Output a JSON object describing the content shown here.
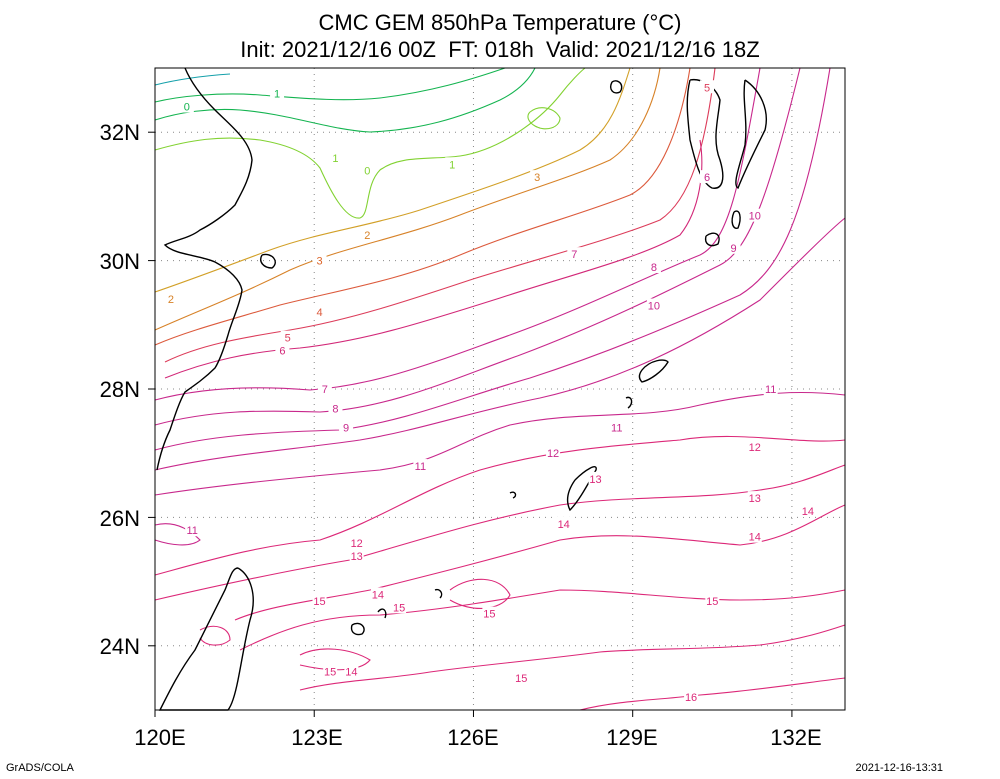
{
  "title": {
    "line1": "CMC GEM 850hPa Temperature (°C)",
    "line2": "Init: 2021/12/16 00Z  FT: 018h  Valid: 2021/12/16 18Z"
  },
  "axes": {
    "x_ticks": [
      "120E",
      "123E",
      "126E",
      "129E",
      "132E"
    ],
    "y_ticks": [
      "32N",
      "30N",
      "28N",
      "26N",
      "24N"
    ],
    "lon_range": [
      120,
      133
    ],
    "lat_range": [
      23,
      33
    ],
    "grid": "dotted"
  },
  "contour_labels": [
    {
      "text": "1",
      "lon": 122.3,
      "lat": 32.6,
      "color": "#14b450"
    },
    {
      "text": "0",
      "lon": 120.6,
      "lat": 32.4,
      "color": "#14b450"
    },
    {
      "text": "1",
      "lon": 123.4,
      "lat": 31.6,
      "color": "#82d232"
    },
    {
      "text": "0",
      "lon": 124.0,
      "lat": 31.4,
      "color": "#82d232"
    },
    {
      "text": "1",
      "lon": 125.6,
      "lat": 31.5,
      "color": "#82d232"
    },
    {
      "text": "3",
      "lon": 127.2,
      "lat": 31.3,
      "color": "#d78228"
    },
    {
      "text": "2",
      "lon": 124.0,
      "lat": 30.4,
      "color": "#d78228"
    },
    {
      "text": "3",
      "lon": 123.1,
      "lat": 30.0,
      "color": "#dc6428"
    },
    {
      "text": "2",
      "lon": 120.3,
      "lat": 29.4,
      "color": "#d78228"
    },
    {
      "text": "4",
      "lon": 123.1,
      "lat": 29.2,
      "color": "#dc5a3c"
    },
    {
      "text": "5",
      "lon": 122.5,
      "lat": 28.8,
      "color": "#dc3c5a"
    },
    {
      "text": "6",
      "lon": 122.4,
      "lat": 28.6,
      "color": "#d22878"
    },
    {
      "text": "7",
      "lon": 123.2,
      "lat": 28.0,
      "color": "#c8288c"
    },
    {
      "text": "8",
      "lon": 123.4,
      "lat": 27.7,
      "color": "#c8288c"
    },
    {
      "text": "9",
      "lon": 123.6,
      "lat": 27.4,
      "color": "#c8288c"
    },
    {
      "text": "11",
      "lon": 125.0,
      "lat": 26.8,
      "color": "#c8288c"
    },
    {
      "text": "12",
      "lon": 127.5,
      "lat": 27.0,
      "color": "#c8288c"
    },
    {
      "text": "11",
      "lon": 128.7,
      "lat": 27.4,
      "color": "#c8288c"
    },
    {
      "text": "13",
      "lon": 128.3,
      "lat": 26.6,
      "color": "#dc2878"
    },
    {
      "text": "12",
      "lon": 131.3,
      "lat": 27.1,
      "color": "#dc2878"
    },
    {
      "text": "11",
      "lon": 131.6,
      "lat": 28.0,
      "color": "#c8288c"
    },
    {
      "text": "13",
      "lon": 131.3,
      "lat": 26.3,
      "color": "#dc2878"
    },
    {
      "text": "11",
      "lon": 120.7,
      "lat": 25.8,
      "color": "#c8288c"
    },
    {
      "text": "12",
      "lon": 123.8,
      "lat": 25.6,
      "color": "#dc2878"
    },
    {
      "text": "13",
      "lon": 123.8,
      "lat": 25.4,
      "color": "#dc2878"
    },
    {
      "text": "14",
      "lon": 127.7,
      "lat": 25.9,
      "color": "#dc2878"
    },
    {
      "text": "14",
      "lon": 131.3,
      "lat": 25.7,
      "color": "#dc2878"
    },
    {
      "text": "14",
      "lon": 132.3,
      "lat": 26.1,
      "color": "#dc2878"
    },
    {
      "text": "14",
      "lon": 124.2,
      "lat": 24.8,
      "color": "#dc2878"
    },
    {
      "text": "15",
      "lon": 123.1,
      "lat": 24.7,
      "color": "#dc2878"
    },
    {
      "text": "15",
      "lon": 124.6,
      "lat": 24.6,
      "color": "#dc2878"
    },
    {
      "text": "15",
      "lon": 126.3,
      "lat": 24.5,
      "color": "#dc2878"
    },
    {
      "text": "15",
      "lon": 130.5,
      "lat": 24.7,
      "color": "#dc2878"
    },
    {
      "text": "15",
      "lon": 123.3,
      "lat": 23.6,
      "color": "#dc2878"
    },
    {
      "text": "14",
      "lon": 123.7,
      "lat": 23.6,
      "color": "#dc2878"
    },
    {
      "text": "15",
      "lon": 126.9,
      "lat": 23.5,
      "color": "#dc2878"
    },
    {
      "text": "16",
      "lon": 130.1,
      "lat": 23.2,
      "color": "#dc2878"
    },
    {
      "text": "8",
      "lon": 129.4,
      "lat": 29.9,
      "color": "#c8288c"
    },
    {
      "text": "7",
      "lon": 127.9,
      "lat": 30.1,
      "color": "#c8288c"
    },
    {
      "text": "10",
      "lon": 129.4,
      "lat": 29.3,
      "color": "#c8288c"
    },
    {
      "text": "6",
      "lon": 130.4,
      "lat": 31.3,
      "color": "#c8288c"
    },
    {
      "text": "10",
      "lon": 131.3,
      "lat": 30.7,
      "color": "#c8288c"
    },
    {
      "text": "9",
      "lon": 130.9,
      "lat": 30.2,
      "color": "#c8288c"
    },
    {
      "text": "5",
      "lon": 130.4,
      "lat": 32.7,
      "color": "#dc3c5a"
    }
  ],
  "footer": {
    "left": "GrADS/COLA",
    "right": "2021-12-16-13:31"
  }
}
